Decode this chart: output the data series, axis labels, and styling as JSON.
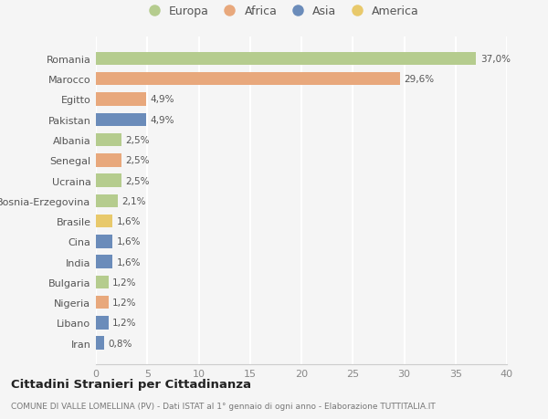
{
  "countries": [
    "Romania",
    "Marocco",
    "Egitto",
    "Pakistan",
    "Albania",
    "Senegal",
    "Ucraina",
    "Bosnia-Erzegovina",
    "Brasile",
    "Cina",
    "India",
    "Bulgaria",
    "Nigeria",
    "Libano",
    "Iran"
  ],
  "values": [
    37.0,
    29.6,
    4.9,
    4.9,
    2.5,
    2.5,
    2.5,
    2.1,
    1.6,
    1.6,
    1.6,
    1.2,
    1.2,
    1.2,
    0.8
  ],
  "labels": [
    "37,0%",
    "29,6%",
    "4,9%",
    "4,9%",
    "2,5%",
    "2,5%",
    "2,5%",
    "2,1%",
    "1,6%",
    "1,6%",
    "1,6%",
    "1,2%",
    "1,2%",
    "1,2%",
    "0,8%"
  ],
  "colors": [
    "#b5cc8e",
    "#e8a87c",
    "#e8a87c",
    "#6b8cba",
    "#b5cc8e",
    "#e8a87c",
    "#b5cc8e",
    "#b5cc8e",
    "#e8c96b",
    "#6b8cba",
    "#6b8cba",
    "#b5cc8e",
    "#e8a87c",
    "#6b8cba",
    "#6b8cba"
  ],
  "continent_colors": {
    "Europa": "#b5cc8e",
    "Africa": "#e8a87c",
    "Asia": "#6b8cba",
    "America": "#e8c96b"
  },
  "title": "Cittadini Stranieri per Cittadinanza",
  "subtitle": "COMUNE DI VALLE LOMELLINA (PV) - Dati ISTAT al 1° gennaio di ogni anno - Elaborazione TUTTITALIA.IT",
  "xlim": [
    0,
    40
  ],
  "xticks": [
    0,
    5,
    10,
    15,
    20,
    25,
    30,
    35,
    40
  ],
  "background_color": "#f5f5f5",
  "grid_color": "#ffffff",
  "bar_height": 0.65
}
